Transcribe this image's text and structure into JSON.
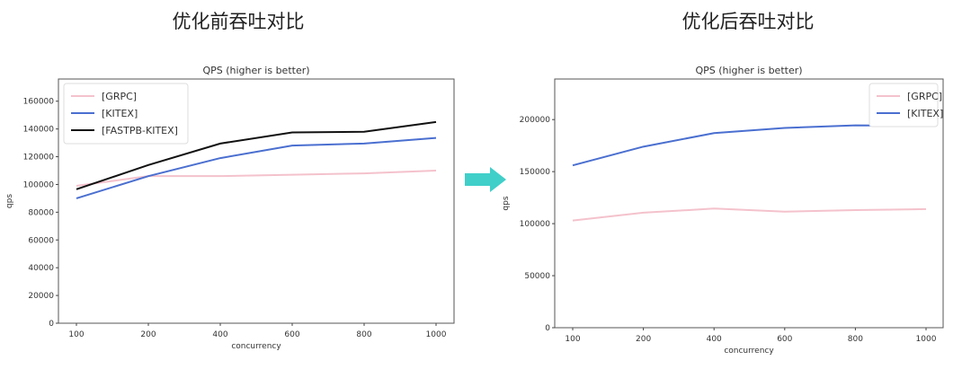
{
  "headings": {
    "before": "优化前吞吐对比",
    "after": "优化后吞吐对比"
  },
  "arrow_color": "#40cfc9",
  "chart_data": [
    {
      "type": "line",
      "title": "QPS (higher is better)",
      "xlabel": "concurrency",
      "ylabel": "qps",
      "categories": [
        "100",
        "200",
        "400",
        "600",
        "800",
        "1000"
      ],
      "ylim": [
        0,
        176000
      ],
      "yticks": [
        0,
        20000,
        40000,
        60000,
        80000,
        100000,
        120000,
        140000,
        160000
      ],
      "legend": "top-left",
      "grid": false,
      "series": [
        {
          "name": "[GRPC]",
          "color": "#f4c2cc",
          "values": [
            99000,
            106000,
            106000,
            107000,
            108000,
            110000
          ]
        },
        {
          "name": "[KITEX]",
          "color": "#4a6fd0",
          "values": [
            90000,
            106000,
            119000,
            128000,
            129500,
            133500
          ]
        },
        {
          "name": "[FASTPB-KITEX]",
          "color": "#111111",
          "values": [
            96500,
            114000,
            129500,
            137500,
            138000,
            145000
          ]
        }
      ]
    },
    {
      "type": "line",
      "title": "QPS (higher is better)",
      "xlabel": "concurrency",
      "ylabel": "qps",
      "categories": [
        "100",
        "200",
        "400",
        "600",
        "800",
        "1000"
      ],
      "ylim": [
        0,
        239000
      ],
      "yticks": [
        0,
        50000,
        100000,
        150000,
        200000
      ],
      "legend": "top-right",
      "grid": false,
      "series": [
        {
          "name": "[GRPC]",
          "color": "#f4c2cc",
          "values": [
            103000,
            110500,
            114500,
            111500,
            113000,
            114000
          ]
        },
        {
          "name": "[KITEX]",
          "color": "#4a6fd0",
          "values": [
            156000,
            174000,
            187000,
            192000,
            194500,
            194000
          ]
        }
      ]
    }
  ]
}
